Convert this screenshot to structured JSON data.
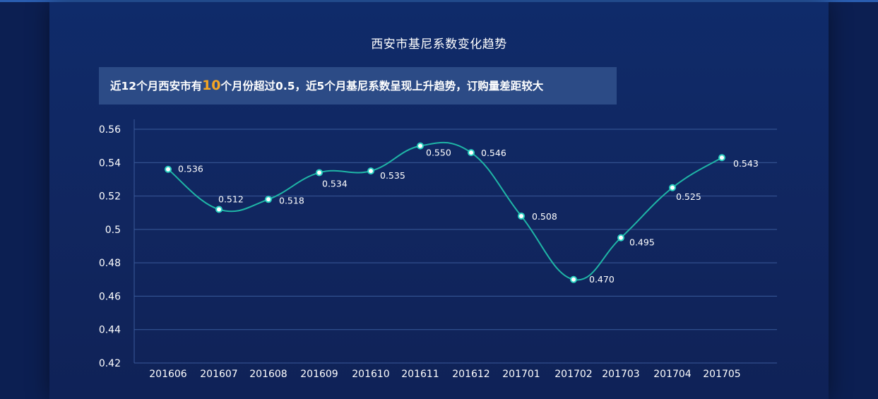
{
  "chart_data": {
    "type": "line",
    "title": "西安市基尼系数变化趋势",
    "annotation": {
      "prefix": "近12个月西安市有",
      "highlight": "10",
      "suffix": "个月份超过0.5，近5个月基尼系数呈现上升趋势，订购量差距较大"
    },
    "categories": [
      "201606",
      "201607",
      "201608",
      "201609",
      "201610",
      "201611",
      "201612",
      "201701",
      "201702",
      "201703",
      "201704",
      "201705"
    ],
    "values": [
      0.536,
      0.512,
      0.518,
      0.534,
      0.535,
      0.55,
      0.546,
      0.508,
      0.47,
      0.495,
      0.525,
      0.543
    ],
    "value_labels": [
      "0.536",
      "0.512",
      "0.518",
      "0.534",
      "0.535",
      "0.550",
      "0.546",
      "0.508",
      "0.470",
      "0.495",
      "0.525",
      "0.543"
    ],
    "y_ticks": [
      "0.42",
      "0.44",
      "0.46",
      "0.48",
      "0.5",
      "0.52",
      "0.54",
      "0.56"
    ],
    "ylim": [
      0.42,
      0.56
    ],
    "grid": true,
    "colors": {
      "line": "#1fb5a6",
      "marker_fill": "#ffffff",
      "marker_stroke": "#2ad1c1",
      "grid": "#3a5a9a",
      "highlight": "#f5a623"
    }
  }
}
